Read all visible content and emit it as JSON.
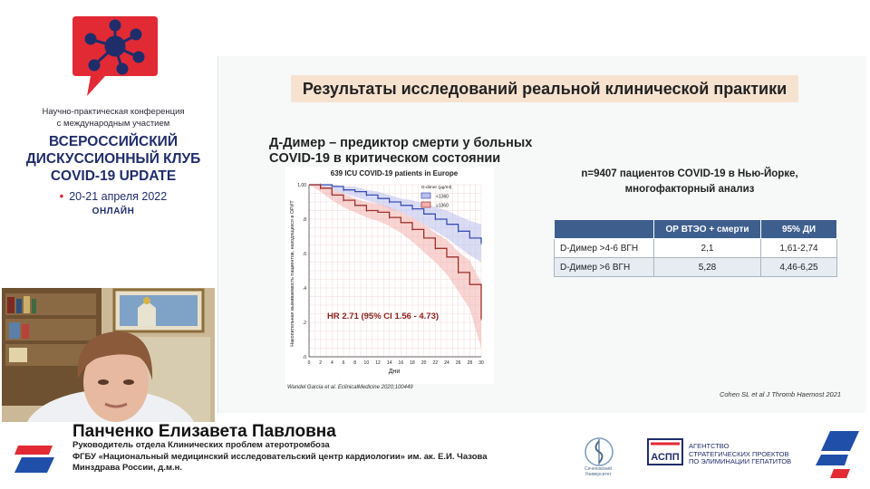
{
  "conference": {
    "subtitle_line1": "Научно-практическая конференция",
    "subtitle_line2": "с международным участием",
    "title_line1": "ВСЕРОССИЙСКИЙ",
    "title_line2": "ДИСКУССИОННЫЙ КЛУБ",
    "title_line3": "COVID-19 UPDATE",
    "dates": "20-21 апреля 2022",
    "format": "ОНЛАЙН",
    "logo_icon": "virus-speech-bubble-icon",
    "colors": {
      "brand_red": "#e22a35",
      "brand_navy": "#1f2d6b"
    }
  },
  "slide": {
    "title": "Результаты исследований реальной клинической практики",
    "chart_heading_line1": "Д-Димер – предиктор смерти у больных",
    "chart_heading_line2": "COVID-19 в критическом состоянии",
    "chart_citation": "Wandel Garcia et al. EclinicalMedicine 2020;100449",
    "study_line1": "n=9407 пациентов COVID-19 в Нью-Йорке,",
    "study_line2": "многофакторный  анализ",
    "table": {
      "headers": [
        "",
        "ОР ВТЭО + смерти",
        "95% ДИ"
      ],
      "rows": [
        [
          "D-Димер >4-6 ВГН",
          "2,1",
          "1,61-2,74"
        ],
        [
          "D-Димер >6 ВГН",
          "5,28",
          "4,46-6,25"
        ]
      ]
    },
    "citation": "Cohen SL et al J Thromb Haemost 2021"
  },
  "chart_data": {
    "type": "line",
    "title": "639 ICU COVID-19 patients in Europe",
    "xlabel": "Дни",
    "ylabel": "Накопительная выживаемость пациентов, находящихся в ОРИТ",
    "xlim": [
      0,
      30
    ],
    "ylim": [
      0,
      1
    ],
    "x_ticks": [
      "0",
      "2",
      "4",
      "6",
      "8",
      "10",
      "12",
      "14",
      "16",
      "18",
      "20",
      "22",
      "24",
      "26",
      "28",
      "30"
    ],
    "y_ticks": [
      ".0",
      ".2",
      ".4",
      ".6",
      ".8",
      "1.00"
    ],
    "legend_title": "D-dimer (µg/ml)",
    "legend_position": "top-right",
    "annotation": "HR 2.71 (95% CI 1.56 - 4.73)",
    "series": [
      {
        "name": "<1360",
        "color": "#3b4fb8",
        "ci_color": "#b9c0ec",
        "x": [
          0,
          2,
          4,
          6,
          8,
          10,
          12,
          14,
          16,
          18,
          20,
          22,
          24,
          26,
          28,
          30
        ],
        "values": [
          1.0,
          1.0,
          0.99,
          0.97,
          0.96,
          0.94,
          0.92,
          0.9,
          0.88,
          0.86,
          0.83,
          0.8,
          0.77,
          0.73,
          0.69,
          0.66
        ],
        "ci_low": [
          1.0,
          0.99,
          0.97,
          0.95,
          0.93,
          0.91,
          0.89,
          0.86,
          0.84,
          0.81,
          0.77,
          0.73,
          0.69,
          0.64,
          0.59,
          0.55
        ],
        "ci_high": [
          1.0,
          1.0,
          1.0,
          0.99,
          0.99,
          0.97,
          0.96,
          0.94,
          0.92,
          0.91,
          0.89,
          0.87,
          0.85,
          0.82,
          0.79,
          0.77
        ]
      },
      {
        "name": "≥1360",
        "color": "#a0302a",
        "ci_color": "#f2b0ad",
        "x": [
          0,
          2,
          4,
          6,
          8,
          10,
          12,
          14,
          16,
          18,
          20,
          22,
          24,
          26,
          28,
          30
        ],
        "values": [
          1.0,
          0.98,
          0.94,
          0.91,
          0.88,
          0.85,
          0.84,
          0.81,
          0.78,
          0.74,
          0.69,
          0.63,
          0.58,
          0.49,
          0.42,
          0.22
        ],
        "ci_low": [
          1.0,
          0.96,
          0.91,
          0.87,
          0.84,
          0.81,
          0.79,
          0.76,
          0.72,
          0.67,
          0.61,
          0.55,
          0.48,
          0.38,
          0.28,
          0.05
        ],
        "ci_high": [
          1.0,
          1.0,
          0.97,
          0.95,
          0.92,
          0.9,
          0.89,
          0.87,
          0.84,
          0.81,
          0.77,
          0.72,
          0.68,
          0.61,
          0.56,
          0.43
        ]
      }
    ]
  },
  "speaker": {
    "name": "Панченко Елизавета Павловна",
    "line1": "Руководитель отдела Клинических проблем атеротромбоза",
    "line2": "ФГБУ «Национальный медицинский исследовательский центр кардиологии» им. ак. Е.И. Чазова",
    "line3": "Минздрава России, д.м.н."
  },
  "sponsors": {
    "sechenov": "Сеченовский Университет",
    "aspp_line1": "АГЕНТСТВО",
    "aspp_line2": "СТРАТЕГИЧЕСКИХ ПРОЕКТОВ",
    "aspp_line3": "ПО ЭЛИМИНАЦИИ ГЕПАТИТОВ",
    "aspp_mark": "АСПП"
  }
}
